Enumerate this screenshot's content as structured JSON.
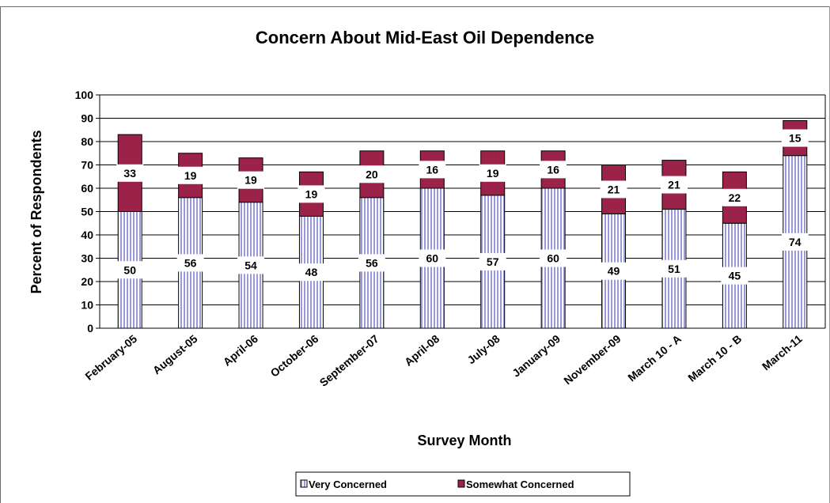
{
  "chart_data": {
    "type": "bar",
    "stacked": true,
    "title": "Concern About Mid-East Oil Dependence",
    "xlabel": "Survey Month",
    "ylabel": "Percent of Respondents",
    "ylim": [
      0,
      100
    ],
    "yticks": [
      0,
      10,
      20,
      30,
      40,
      50,
      60,
      70,
      80,
      90,
      100
    ],
    "grid": true,
    "legend_position": "bottom",
    "categories": [
      "February-05",
      "August-05",
      "April-06",
      "October-06",
      "September-07",
      "April-08",
      "July-08",
      "January-09",
      "November-09",
      "March 10 - A",
      "March 10 - B",
      "March-11"
    ],
    "series": [
      {
        "name": "Very Concerned",
        "values": [
          50,
          56,
          54,
          48,
          56,
          60,
          57,
          60,
          49,
          51,
          45,
          74
        ],
        "color": "#d7d7f0",
        "pattern": "vertical-stripes"
      },
      {
        "name": "Somewhat Concerned",
        "values": [
          33,
          19,
          19,
          19,
          20,
          16,
          19,
          16,
          21,
          21,
          22,
          15
        ],
        "color": "#9b234a"
      }
    ]
  }
}
